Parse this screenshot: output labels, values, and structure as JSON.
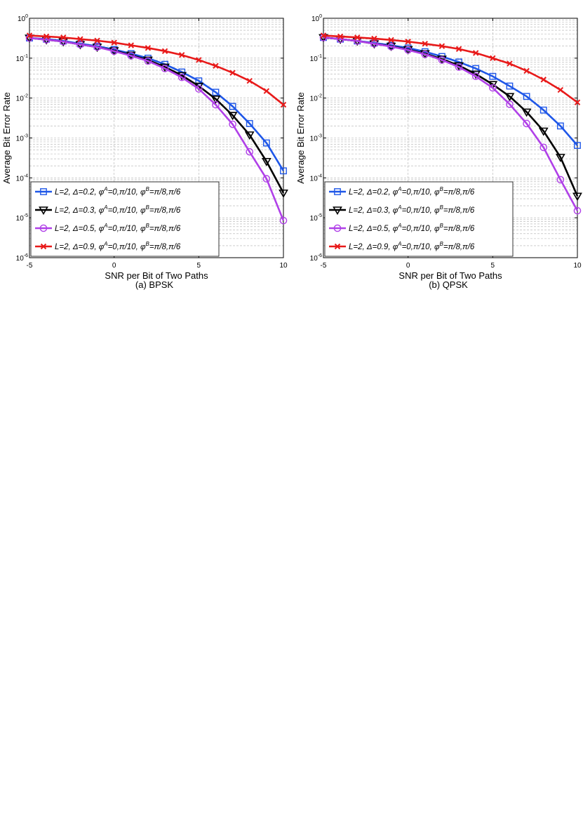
{
  "colors": {
    "blue": "#1f57e8",
    "black": "#000000",
    "purple": "#b040e8",
    "red": "#e81a1a",
    "grid": "#b0b0b0"
  },
  "chart_data": [
    {
      "type": "line",
      "caption": "(a) BPSK",
      "xlabel": "SNR per Bit of Two Paths",
      "ylabel": "Average Bit Error Rate",
      "xlim": [
        -5,
        10
      ],
      "ylim": [
        1e-06,
        1
      ],
      "yscale": "log",
      "grid": true,
      "legend_position": "bottom-left",
      "x_ticks": [
        "-5",
        "0",
        "5",
        "10"
      ],
      "y_ticks": [
        {
          "base": "10",
          "exp": "0"
        },
        {
          "base": "10",
          "exp": "-1"
        },
        {
          "base": "10",
          "exp": "-2"
        },
        {
          "base": "10",
          "exp": "-3"
        },
        {
          "base": "10",
          "exp": "-4"
        },
        {
          "base": "10",
          "exp": "-5"
        },
        {
          "base": "10",
          "exp": "-6"
        }
      ],
      "x": [
        -5,
        -4,
        -3,
        -2,
        -1,
        0,
        1,
        2,
        3,
        4,
        5,
        6,
        7,
        8,
        9,
        10
      ],
      "series": [
        {
          "legend": {
            "delta": "=0.2",
            "phiA": "=0,π/10",
            "phiB": "=π/8,π/6"
          },
          "color": "blue",
          "marker": "square",
          "values": [
            0.32,
            0.3,
            0.27,
            0.23,
            0.2,
            0.165,
            0.13,
            0.1,
            0.07,
            0.045,
            0.027,
            0.014,
            0.0062,
            0.0023,
            0.00075,
            0.00015
          ]
        },
        {
          "legend": {
            "delta": "=0.3",
            "phiA": "=0,π/10",
            "phiB": "=π/8,π/6"
          },
          "color": "black",
          "marker": "triangle-down",
          "values": [
            0.32,
            0.29,
            0.26,
            0.22,
            0.19,
            0.155,
            0.12,
            0.09,
            0.06,
            0.037,
            0.02,
            0.0095,
            0.0037,
            0.0012,
            0.00026,
            4.2e-05
          ]
        },
        {
          "legend": {
            "delta": "=0.5",
            "phiA": "=0,π/10",
            "phiB": "=π/8,π/6"
          },
          "color": "purple",
          "marker": "circle",
          "values": [
            0.32,
            0.29,
            0.26,
            0.22,
            0.19,
            0.15,
            0.115,
            0.085,
            0.055,
            0.033,
            0.017,
            0.0068,
            0.0022,
            0.00045,
            9.5e-05,
            8.5e-06
          ]
        },
        {
          "legend": {
            "delta": "=0.9",
            "phiA": "=0,π/10",
            "phiB": "=π/8,π/6"
          },
          "color": "red",
          "marker": "x",
          "values": [
            0.37,
            0.35,
            0.33,
            0.3,
            0.275,
            0.245,
            0.21,
            0.18,
            0.15,
            0.12,
            0.09,
            0.064,
            0.043,
            0.027,
            0.015,
            0.0068
          ]
        }
      ]
    },
    {
      "type": "line",
      "caption": "(b) QPSK",
      "xlabel": "SNR per Bit of Two Paths",
      "ylabel": "Average Bit Error Rate",
      "xlim": [
        -5,
        10
      ],
      "ylim": [
        1e-06,
        1
      ],
      "yscale": "log",
      "grid": true,
      "legend_position": "bottom-left",
      "x_ticks": [
        "-5",
        "0",
        "5",
        "10"
      ],
      "y_ticks": [
        {
          "base": "10",
          "exp": "0"
        },
        {
          "base": "10",
          "exp": "-1"
        },
        {
          "base": "10",
          "exp": "-2"
        },
        {
          "base": "10",
          "exp": "-3"
        },
        {
          "base": "10",
          "exp": "-4"
        },
        {
          "base": "10",
          "exp": "-5"
        },
        {
          "base": "10",
          "exp": "-6"
        }
      ],
      "x": [
        -5,
        -4,
        -3,
        -2,
        -1,
        0,
        1,
        2,
        3,
        4,
        5,
        6,
        7,
        8,
        9,
        10
      ],
      "series": [
        {
          "legend": {
            "delta": "=0.2",
            "phiA": "=0,π/10",
            "phiB": "=π/8,π/6"
          },
          "color": "blue",
          "marker": "square",
          "values": [
            0.33,
            0.3,
            0.27,
            0.24,
            0.21,
            0.18,
            0.145,
            0.11,
            0.08,
            0.055,
            0.035,
            0.02,
            0.011,
            0.005,
            0.002,
            0.00065
          ]
        },
        {
          "legend": {
            "delta": "=0.3",
            "phiA": "=0,π/10",
            "phiB": "=π/8,π/6"
          },
          "color": "black",
          "marker": "triangle-down",
          "values": [
            0.33,
            0.3,
            0.27,
            0.23,
            0.2,
            0.165,
            0.13,
            0.095,
            0.065,
            0.04,
            0.022,
            0.011,
            0.0045,
            0.0015,
            0.00033,
            3.5e-05
          ]
        },
        {
          "legend": {
            "delta": "=0.5",
            "phiA": "=0,π/10",
            "phiB": "=π/8,π/6"
          },
          "color": "purple",
          "marker": "circle",
          "values": [
            0.33,
            0.3,
            0.27,
            0.23,
            0.195,
            0.16,
            0.125,
            0.09,
            0.06,
            0.035,
            0.018,
            0.007,
            0.0023,
            0.00058,
            9e-05,
            1.5e-05
          ]
        },
        {
          "legend": {
            "delta": "=0.9",
            "phiA": "=0,π/10",
            "phiB": "=π/8,π/6"
          },
          "color": "red",
          "marker": "x",
          "values": [
            0.37,
            0.35,
            0.33,
            0.31,
            0.285,
            0.26,
            0.23,
            0.2,
            0.17,
            0.135,
            0.1,
            0.073,
            0.048,
            0.029,
            0.016,
            0.0078
          ]
        }
      ]
    }
  ]
}
